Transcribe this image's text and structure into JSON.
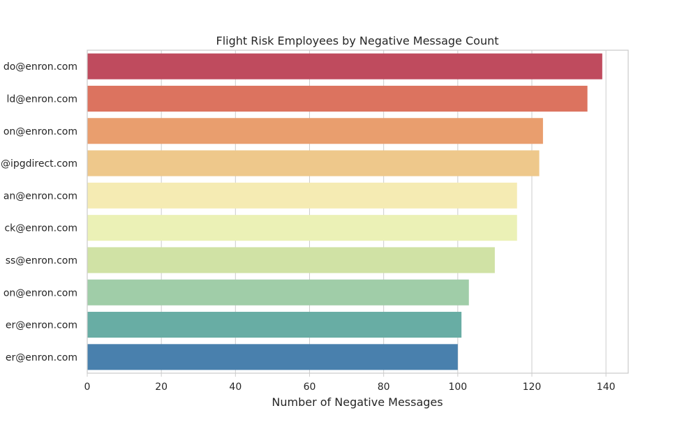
{
  "chart_data": {
    "type": "bar",
    "orientation": "horizontal",
    "title": "Flight Risk Employees by Negative Message Count",
    "xlabel": "Number of Negative Messages",
    "ylabel": "",
    "xlim": [
      0,
      146
    ],
    "x_ticks": [
      0,
      20,
      40,
      60,
      80,
      100,
      120,
      140
    ],
    "grid": true,
    "categories": [
      "do@enron.com",
      "ld@enron.com",
      "on@enron.com",
      "@ipgdirect.com",
      "an@enron.com",
      "ck@enron.com",
      "ss@enron.com",
      "on@enron.com",
      "er@enron.com",
      "er@enron.com"
    ],
    "values": [
      139,
      135,
      123,
      122,
      116,
      116,
      110,
      103,
      101,
      100
    ],
    "colors": [
      "#bf4b5e",
      "#dc735f",
      "#e99e6e",
      "#eec88b",
      "#f5ebb3",
      "#ebf1b6",
      "#d0e2a5",
      "#a0cda8",
      "#68ada4",
      "#4980ad"
    ]
  }
}
